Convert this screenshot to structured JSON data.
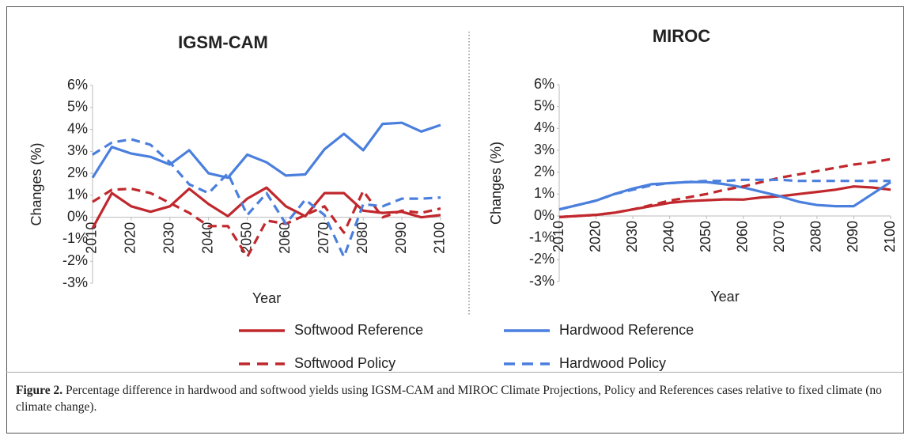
{
  "chart_data": [
    {
      "type": "line",
      "title": "IGSM-CAM",
      "xlabel": "Year",
      "ylabel": "Changes (%)",
      "x": [
        2010,
        2015,
        2020,
        2025,
        2030,
        2035,
        2040,
        2045,
        2050,
        2055,
        2060,
        2065,
        2070,
        2075,
        2080,
        2085,
        2090,
        2095,
        2100
      ],
      "xlim": [
        2010,
        2100
      ],
      "xticks": [
        2010,
        2020,
        2030,
        2040,
        2050,
        2060,
        2070,
        2080,
        2090,
        2100
      ],
      "ylim": [
        -3,
        6
      ],
      "yticks": [
        {
          "value": -3,
          "label": "-3%"
        },
        {
          "value": -2,
          "label": "-2%"
        },
        {
          "value": -1,
          "label": "-1%"
        },
        {
          "value": 0,
          "label": "0%"
        },
        {
          "value": 1,
          "label": "1%"
        },
        {
          "value": 2,
          "label": "2%"
        },
        {
          "value": 3,
          "label": "3%"
        },
        {
          "value": 4,
          "label": "4%"
        },
        {
          "value": 5,
          "label": "5%"
        },
        {
          "value": 6,
          "label": "6%"
        }
      ],
      "grid": false,
      "legend": "bottom",
      "series": [
        {
          "name": "Softwood Reference",
          "color": "#c0282d",
          "linestyle": "solid",
          "values": [
            -0.5,
            1.1,
            0.5,
            0.25,
            0.5,
            1.3,
            0.6,
            0.05,
            0.85,
            1.35,
            0.5,
            0.05,
            1.1,
            1.1,
            0.3,
            0.2,
            0.25,
            0.0,
            0.1
          ]
        },
        {
          "name": "Hardwood Reference",
          "color": "#4a7fdd",
          "linestyle": "solid",
          "values": [
            1.8,
            3.2,
            2.9,
            2.75,
            2.4,
            3.05,
            2.0,
            1.8,
            2.85,
            2.5,
            1.9,
            1.95,
            3.1,
            3.8,
            3.05,
            4.25,
            4.3,
            3.9,
            4.2
          ]
        },
        {
          "name": "Softwood Policy",
          "color": "#c0282d",
          "linestyle": "dashed",
          "values": [
            0.7,
            1.25,
            1.3,
            1.1,
            0.65,
            0.2,
            -0.4,
            -0.4,
            -1.8,
            -0.15,
            -0.3,
            0.1,
            0.5,
            -0.7,
            1.2,
            0.0,
            0.3,
            0.2,
            0.4
          ]
        },
        {
          "name": "Hardwood Policy",
          "color": "#4a7fdd",
          "linestyle": "dashed",
          "values": [
            2.85,
            3.4,
            3.55,
            3.3,
            2.5,
            1.5,
            1.1,
            2.0,
            0.1,
            1.1,
            -0.3,
            0.8,
            0.1,
            -1.8,
            0.6,
            0.5,
            0.85,
            0.85,
            0.9
          ]
        }
      ]
    },
    {
      "type": "line",
      "title": "MIROC",
      "xlabel": "Year",
      "ylabel": "Changes (%)",
      "x": [
        2010,
        2015,
        2020,
        2025,
        2030,
        2035,
        2040,
        2045,
        2050,
        2055,
        2060,
        2065,
        2070,
        2075,
        2080,
        2085,
        2090,
        2095,
        2100
      ],
      "xlim": [
        2010,
        2100
      ],
      "xticks": [
        2010,
        2020,
        2030,
        2040,
        2050,
        2060,
        2070,
        2080,
        2090,
        2100
      ],
      "ylim": [
        -3,
        6
      ],
      "yticks": [
        {
          "value": -3,
          "label": "-3%"
        },
        {
          "value": -2,
          "label": "-2%"
        },
        {
          "value": -1,
          "label": "-1%"
        },
        {
          "value": 0,
          "label": "0%"
        },
        {
          "value": 1,
          "label": "1%"
        },
        {
          "value": 2,
          "label": "2%"
        },
        {
          "value": 3,
          "label": "3%"
        },
        {
          "value": 4,
          "label": "4%"
        },
        {
          "value": 5,
          "label": "5%"
        },
        {
          "value": 6,
          "label": "6%"
        }
      ],
      "grid": false,
      "legend": "bottom",
      "series": [
        {
          "name": "Softwood Reference",
          "color": "#c0282d",
          "linestyle": "solid",
          "values": [
            -0.05,
            0.0,
            0.05,
            0.15,
            0.3,
            0.45,
            0.6,
            0.68,
            0.72,
            0.76,
            0.75,
            0.85,
            0.9,
            1.0,
            1.1,
            1.2,
            1.35,
            1.3,
            1.2
          ]
        },
        {
          "name": "Hardwood Reference",
          "color": "#4a7fdd",
          "linestyle": "solid",
          "values": [
            0.3,
            0.5,
            0.7,
            1.0,
            1.25,
            1.45,
            1.5,
            1.55,
            1.55,
            1.45,
            1.3,
            1.1,
            0.9,
            0.65,
            0.5,
            0.45,
            0.45,
            1.0,
            1.55
          ]
        },
        {
          "name": "Softwood Policy",
          "color": "#c0282d",
          "linestyle": "dashed",
          "values": [
            -0.05,
            0.0,
            0.05,
            0.15,
            0.3,
            0.5,
            0.7,
            0.85,
            1.0,
            1.2,
            1.35,
            1.55,
            1.75,
            1.9,
            2.05,
            2.2,
            2.35,
            2.45,
            2.6
          ]
        },
        {
          "name": "Hardwood Policy",
          "color": "#4a7fdd",
          "linestyle": "dashed",
          "values": [
            0.3,
            0.5,
            0.7,
            1.0,
            1.2,
            1.4,
            1.5,
            1.55,
            1.6,
            1.6,
            1.65,
            1.65,
            1.65,
            1.6,
            1.6,
            1.6,
            1.6,
            1.6,
            1.6
          ]
        }
      ]
    }
  ],
  "caption": {
    "label": "Figure 2.",
    "text": "Percentage difference in hardwood and softwood yields using IGSM-CAM and MIROC Climate Projections, Policy and References cases relative to fixed climate (no climate change)."
  }
}
